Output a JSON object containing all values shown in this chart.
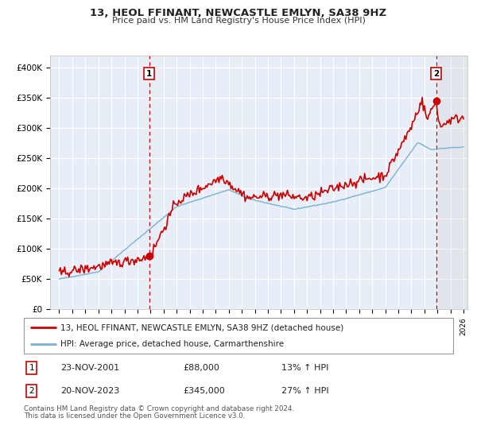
{
  "title": "13, HEOL FFINANT, NEWCASTLE EMLYN, SA38 9HZ",
  "subtitle": "Price paid vs. HM Land Registry's House Price Index (HPI)",
  "legend_label_red": "13, HEOL FFINANT, NEWCASTLE EMLYN, SA38 9HZ (detached house)",
  "legend_label_blue": "HPI: Average price, detached house, Carmarthenshire",
  "sale1_date": "23-NOV-2001",
  "sale1_price": "£88,000",
  "sale1_hpi": "13% ↑ HPI",
  "sale2_date": "20-NOV-2023",
  "sale2_price": "£345,000",
  "sale2_hpi": "27% ↑ HPI",
  "footnote1": "Contains HM Land Registry data © Crown copyright and database right 2024.",
  "footnote2": "This data is licensed under the Open Government Licence v3.0.",
  "red_color": "#cc0000",
  "blue_color": "#7ab0d4",
  "background_chart": "#e8eef8",
  "grid_color": "#ffffff",
  "ylim": [
    0,
    420000
  ],
  "yticks": [
    0,
    50000,
    100000,
    150000,
    200000,
    250000,
    300000,
    350000,
    400000
  ],
  "ytick_labels": [
    "£0",
    "£50K",
    "£100K",
    "£150K",
    "£200K",
    "£250K",
    "£300K",
    "£350K",
    "£400K"
  ],
  "sale1_year": 2001.9,
  "sale2_year": 2023.9,
  "sale1_price_val": 88000,
  "sale2_price_val": 345000
}
